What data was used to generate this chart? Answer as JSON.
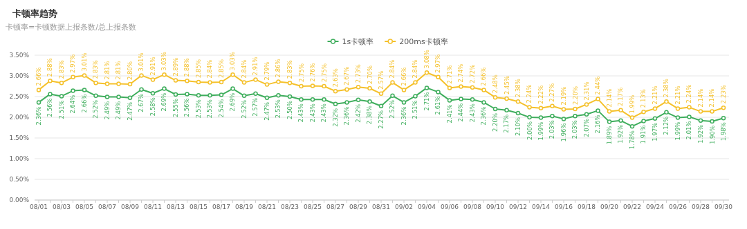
{
  "chart_data": {
    "type": "line",
    "title": "卡顿率趋势",
    "subtitle": "卡顿率=卡顿数据上报条数/总上报条数",
    "categories": [
      "08/01",
      null,
      "08/03",
      null,
      "08/05",
      null,
      "08/07",
      null,
      "08/09",
      null,
      "08/11",
      null,
      "08/13",
      null,
      "08/15",
      null,
      "08/17",
      null,
      "08/19",
      null,
      "08/21",
      null,
      "08/23",
      null,
      "08/25",
      null,
      "08/27",
      null,
      "08/29",
      null,
      "08/31",
      null,
      "09/02",
      null,
      "09/04",
      null,
      "09/06",
      null,
      "09/08",
      null,
      "09/10",
      null,
      "09/12",
      null,
      "09/14",
      null,
      "09/16",
      null,
      "09/18",
      null,
      "09/20",
      null,
      "09/22",
      null,
      "09/24",
      null,
      "09/26",
      null,
      "09/28",
      null,
      "09/30"
    ],
    "series": [
      {
        "name": "1s卡顿率",
        "color": "#3fae5d",
        "values": [
          2.36,
          2.56,
          2.51,
          2.64,
          2.66,
          2.52,
          2.49,
          2.49,
          2.47,
          2.67,
          2.58,
          2.69,
          2.55,
          2.56,
          2.53,
          2.53,
          2.54,
          2.69,
          2.52,
          2.57,
          2.47,
          2.53,
          2.5,
          2.43,
          2.43,
          2.43,
          2.32,
          2.36,
          2.42,
          2.38,
          2.27,
          2.52,
          2.36,
          2.51,
          2.71,
          2.61,
          2.41,
          2.44,
          2.43,
          2.36,
          2.2,
          2.17,
          2.1,
          2.0,
          1.99,
          2.03,
          1.96,
          2.03,
          2.07,
          2.16,
          1.89,
          1.92,
          1.78,
          1.91,
          1.97,
          2.12,
          1.99,
          2.01,
          1.92,
          1.9,
          1.98
        ],
        "value_labels": [
          "2.36%",
          "2.56%",
          "2.51%",
          "2.64%",
          "2.66%",
          "2.52%",
          "2.49%",
          "2.49%",
          "2.47%",
          "2.67%",
          "2.58%",
          "2.69%",
          "2.55%",
          "2.56%",
          "2.53%",
          "2.53%",
          "2.54%",
          "2.69%",
          "2.52%",
          "2.57%",
          "2.47%",
          "2.53%",
          "2.50%",
          "2.43%",
          "2.43%",
          "2.43%",
          "2.32%",
          "2.36%",
          "2.42%",
          "2.38%",
          "2.27%",
          "2.52%",
          "2.36%",
          "2.51%",
          "2.71%",
          "2.61%",
          "2.41%",
          "2.44%",
          "2.43%",
          "2.36%",
          "2.20%",
          "2.17%",
          "2.10%",
          "2.00%",
          "1.99%",
          "2.03%",
          "1.96%",
          "2.03%",
          "2.07%",
          "2.16%",
          "1.89%",
          "1.92%",
          "1.78%",
          "1.91%",
          "1.97%",
          "2.12%",
          "1.99%",
          "2.01%",
          "1.92%",
          "1.90%",
          "1.98%"
        ]
      },
      {
        "name": "200ms卡顿率",
        "color": "#f5c12b",
        "values": [
          2.66,
          2.88,
          2.83,
          2.97,
          3.01,
          2.83,
          2.81,
          2.81,
          2.8,
          3.01,
          2.91,
          3.03,
          2.89,
          2.88,
          2.85,
          2.84,
          2.85,
          3.03,
          2.84,
          2.91,
          2.79,
          2.86,
          2.83,
          2.75,
          2.76,
          2.75,
          2.63,
          2.67,
          2.73,
          2.7,
          2.57,
          2.84,
          2.66,
          2.84,
          3.08,
          2.97,
          2.71,
          2.74,
          2.72,
          2.66,
          2.48,
          2.45,
          2.38,
          2.24,
          2.22,
          2.27,
          2.19,
          2.2,
          2.31,
          2.44,
          2.14,
          2.17,
          1.99,
          2.13,
          2.21,
          2.38,
          2.21,
          2.24,
          2.14,
          2.14,
          2.23
        ],
        "value_labels": [
          "2.66%",
          "2.88%",
          "2.83%",
          "2.97%",
          "3.01%",
          "2.83%",
          "2.81%",
          "2.81%",
          "2.80%",
          "3.01%",
          "2.91%",
          "3.03%",
          "2.89%",
          "2.88%",
          "2.85%",
          "2.84%",
          "2.85%",
          "3.03%",
          "2.84%",
          "2.91%",
          "2.79%",
          "2.86%",
          "2.83%",
          "2.75%",
          "2.76%",
          "2.75%",
          "2.63%",
          "2.67%",
          "2.73%",
          "2.70%",
          "2.57%",
          "2.84%",
          "2.66%",
          "2.84%",
          "3.08%",
          "2.97%",
          "2.71%",
          "2.74%",
          "2.72%",
          "2.66%",
          "2.48%",
          "2.45%",
          "2.38%",
          "2.24%",
          "2.22%",
          "2.27%",
          "2.19%",
          "2.20%",
          "2.31%",
          "2.44%",
          "2.14%",
          "2.17%",
          "1.99%",
          "2.13%",
          "2.21%",
          "2.38%",
          "2.21%",
          "2.24%",
          "2.14%",
          "2.14%",
          "2.23%"
        ]
      }
    ],
    "ylim": [
      0,
      3.5
    ],
    "yticks": [
      {
        "value": 0,
        "label": "0.00%"
      },
      {
        "value": 0.5,
        "label": "0.50%"
      },
      {
        "value": 1,
        "label": "1.00%"
      },
      {
        "value": 1.5,
        "label": "1.50%"
      },
      {
        "value": 2,
        "label": "2.00%"
      },
      {
        "value": 2.5,
        "label": "2.50%"
      },
      {
        "value": 3,
        "label": "3.00%"
      },
      {
        "value": 3.5,
        "label": "3.50%"
      }
    ],
    "grid": "y",
    "legend": "top",
    "marker": "circle",
    "line_style": "solid"
  }
}
